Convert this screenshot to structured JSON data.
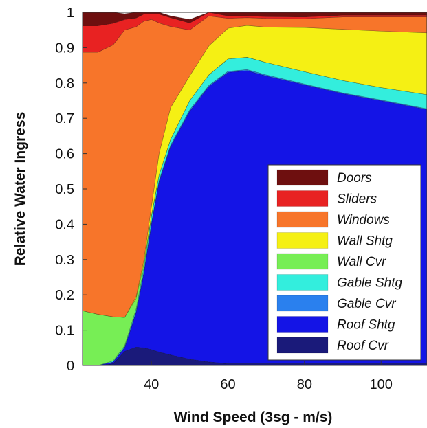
{
  "chart_data": {
    "type": "area",
    "stacked": true,
    "xlabel": "Wind Speed (3sg - m/s)",
    "ylabel": "Relative Water Ingress",
    "xlim": [
      22,
      112
    ],
    "ylim": [
      0,
      1
    ],
    "x_ticks": [
      "40",
      "60",
      "80",
      "100"
    ],
    "y_ticks": [
      "0",
      "0.1",
      "0.2",
      "0.3",
      "0.4",
      "0.5",
      "0.6",
      "0.7",
      "0.8",
      "0.9",
      "1"
    ],
    "legend_position": "bottom-right",
    "x": [
      22,
      26,
      30,
      33,
      36,
      38,
      40,
      42,
      45,
      50,
      55,
      60,
      65,
      70,
      80,
      90,
      100,
      112
    ],
    "series": [
      {
        "name": "Roof Cvr",
        "color": "#1a1a7a",
        "values": [
          0,
          0,
          0.005,
          0.04,
          0.052,
          0.05,
          0.045,
          0.038,
          0.03,
          0.018,
          0.01,
          0.005,
          0.005,
          0.005,
          0.005,
          0.005,
          0.005,
          0.005
        ]
      },
      {
        "name": "Roof Shtg",
        "color": "#1414e6",
        "values": [
          0,
          0,
          0.005,
          0.01,
          0.098,
          0.21,
          0.355,
          0.482,
          0.59,
          0.702,
          0.78,
          0.825,
          0.83,
          0.815,
          0.79,
          0.765,
          0.745,
          0.72
        ]
      },
      {
        "name": "Gable Cvr",
        "color": "#2a80ee",
        "values": [
          0,
          0,
          0,
          0.002,
          0.003,
          0.004,
          0.004,
          0.004,
          0.004,
          0.004,
          0.003,
          0.003,
          0.003,
          0.003,
          0.002,
          0.002,
          0.002,
          0.002
        ]
      },
      {
        "name": "Gable Shtg",
        "color": "#33eedd",
        "values": [
          0,
          0,
          0.003,
          0.004,
          0.007,
          0.011,
          0.016,
          0.016,
          0.016,
          0.026,
          0.03,
          0.035,
          0.035,
          0.035,
          0.035,
          0.035,
          0.035,
          0.04
        ]
      },
      {
        "name": "Wall Cvr",
        "color": "#77ee55",
        "values": [
          0.155,
          0.145,
          0.125,
          0.08,
          0.03,
          0.012,
          0.005,
          0,
          0,
          0,
          0,
          0,
          0,
          0,
          0,
          0,
          0,
          0
        ]
      },
      {
        "name": "Wall Shtg",
        "color": "#f5f014",
        "values": [
          0,
          0,
          0,
          0,
          0.005,
          0.01,
          0.025,
          0.06,
          0.09,
          0.07,
          0.082,
          0.087,
          0.09,
          0.1,
          0.125,
          0.145,
          0.16,
          0.175
        ]
      },
      {
        "name": "Windows",
        "color": "#f7752a",
        "values": [
          0.732,
          0.742,
          0.77,
          0.814,
          0.764,
          0.678,
          0.53,
          0.37,
          0.23,
          0.13,
          0.085,
          0.028,
          0.022,
          0.025,
          0.025,
          0.035,
          0.04,
          0.045
        ]
      },
      {
        "name": "Sliders",
        "color": "#e82222",
        "values": [
          0.075,
          0.075,
          0.061,
          0.03,
          0.025,
          0.02,
          0.015,
          0.025,
          0.025,
          0.02,
          0.01,
          0.007,
          0.005,
          0.005,
          0.005,
          0.005,
          0.005,
          0.005
        ]
      },
      {
        "name": "Doors",
        "color": "#6e0f0f",
        "values": [
          0.038,
          0.038,
          0.031,
          0.016,
          0.016,
          0.005,
          0.005,
          0.005,
          0.005,
          0.01,
          0.01,
          0.01,
          0.01,
          0.012,
          0.013,
          0.008,
          0.008,
          0.008
        ]
      }
    ]
  }
}
